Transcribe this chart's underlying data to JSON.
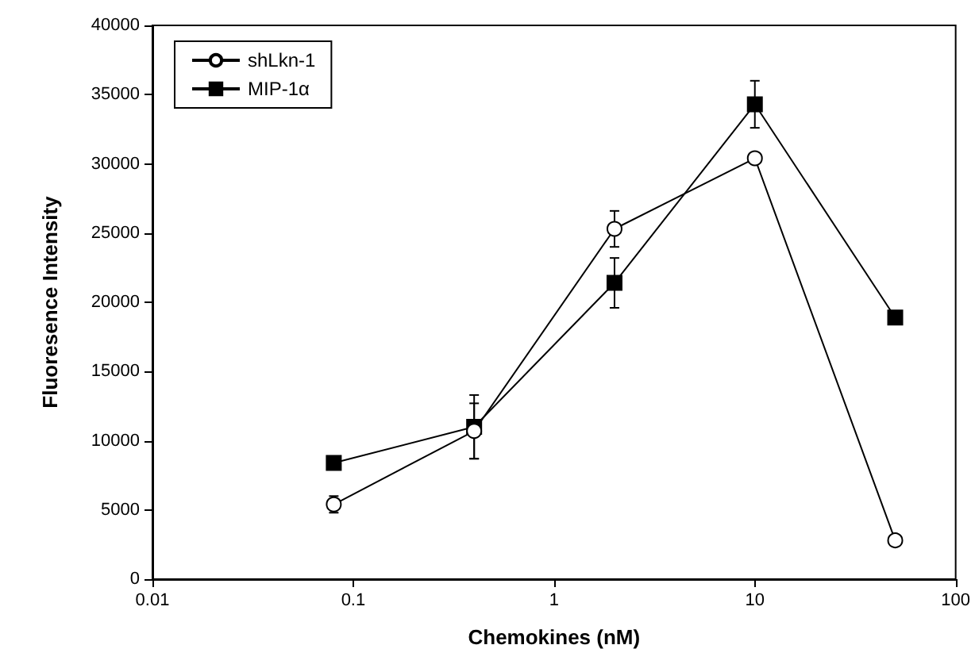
{
  "chart_data": {
    "type": "line",
    "xlabel": "Chemokines (nM)",
    "ylabel": "Fluoresence Intensity",
    "x": [
      0.08,
      0.4,
      2,
      10,
      50
    ],
    "series": [
      {
        "name": "shLkn-1",
        "color": "#000000",
        "marker": "circle",
        "values": [
          5400,
          10700,
          25300,
          30400,
          2800
        ],
        "errors": [
          600,
          2000,
          1300,
          null,
          null
        ]
      },
      {
        "name": "MIP-1α",
        "color": "#000000",
        "marker": "square",
        "values": [
          8400,
          11000,
          21400,
          34300,
          18900
        ],
        "errors": [
          null,
          2300,
          1800,
          1700,
          null
        ]
      }
    ],
    "log": "x",
    "xlim": [
      0.01,
      100
    ],
    "xticks": [
      0.01,
      0.1,
      1,
      10,
      100
    ],
    "ylim": [
      0,
      40000
    ],
    "yticks": [
      0,
      5000,
      10000,
      15000,
      20000,
      25000,
      30000,
      35000,
      40000
    ],
    "grid": false,
    "legend": "top left"
  }
}
